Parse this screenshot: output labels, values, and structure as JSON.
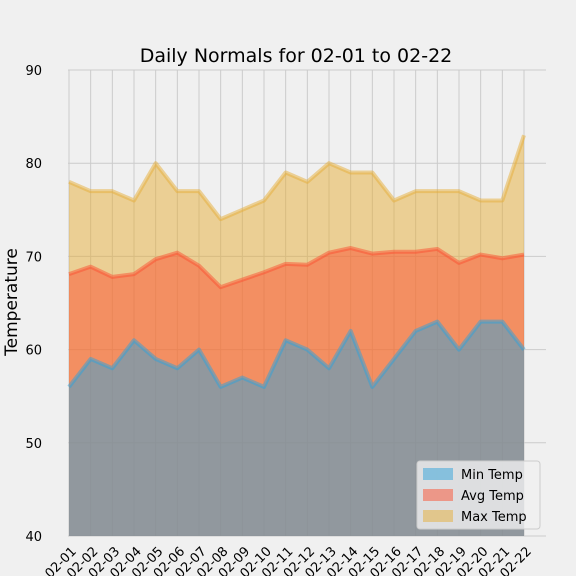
{
  "chart_data": {
    "type": "area",
    "title": "Daily Normals for 02-01 to 02-22",
    "xlabel": "",
    "ylabel": "Temperature",
    "ylim": [
      40,
      90
    ],
    "yticks": [
      40,
      50,
      60,
      70,
      80,
      90
    ],
    "grid": true,
    "legend": "lower-right",
    "categories": [
      "02-01",
      "02-02",
      "02-03",
      "02-04",
      "02-05",
      "02-06",
      "02-07",
      "02-08",
      "02-09",
      "02-10",
      "02-11",
      "02-12",
      "02-13",
      "02-14",
      "02-15",
      "02-16",
      "02-17",
      "02-18",
      "02-19",
      "02-20",
      "02-21",
      "02-22"
    ],
    "series": [
      {
        "name": "Min Temp",
        "color": "#30a2da",
        "values": [
          56,
          59,
          58,
          61,
          59,
          58,
          60,
          56,
          57,
          56,
          61,
          60,
          58,
          62,
          56,
          59,
          62,
          63,
          60,
          63,
          63,
          60
        ]
      },
      {
        "name": "Avg Temp",
        "color": "#fc4f30",
        "values": [
          68.1,
          68.9,
          67.8,
          68.1,
          69.7,
          70.4,
          69.0,
          66.7,
          67.5,
          68.3,
          69.2,
          69.1,
          70.4,
          70.9,
          70.3,
          70.5,
          70.5,
          70.8,
          69.3,
          70.2,
          69.8,
          70.2
        ]
      },
      {
        "name": "Max Temp",
        "color": "#e5ae38",
        "values": [
          78,
          77,
          77,
          76,
          80,
          77,
          77,
          74,
          75,
          76,
          79,
          78,
          80,
          79,
          79,
          76,
          77,
          77,
          77,
          76,
          76,
          83
        ]
      }
    ]
  }
}
